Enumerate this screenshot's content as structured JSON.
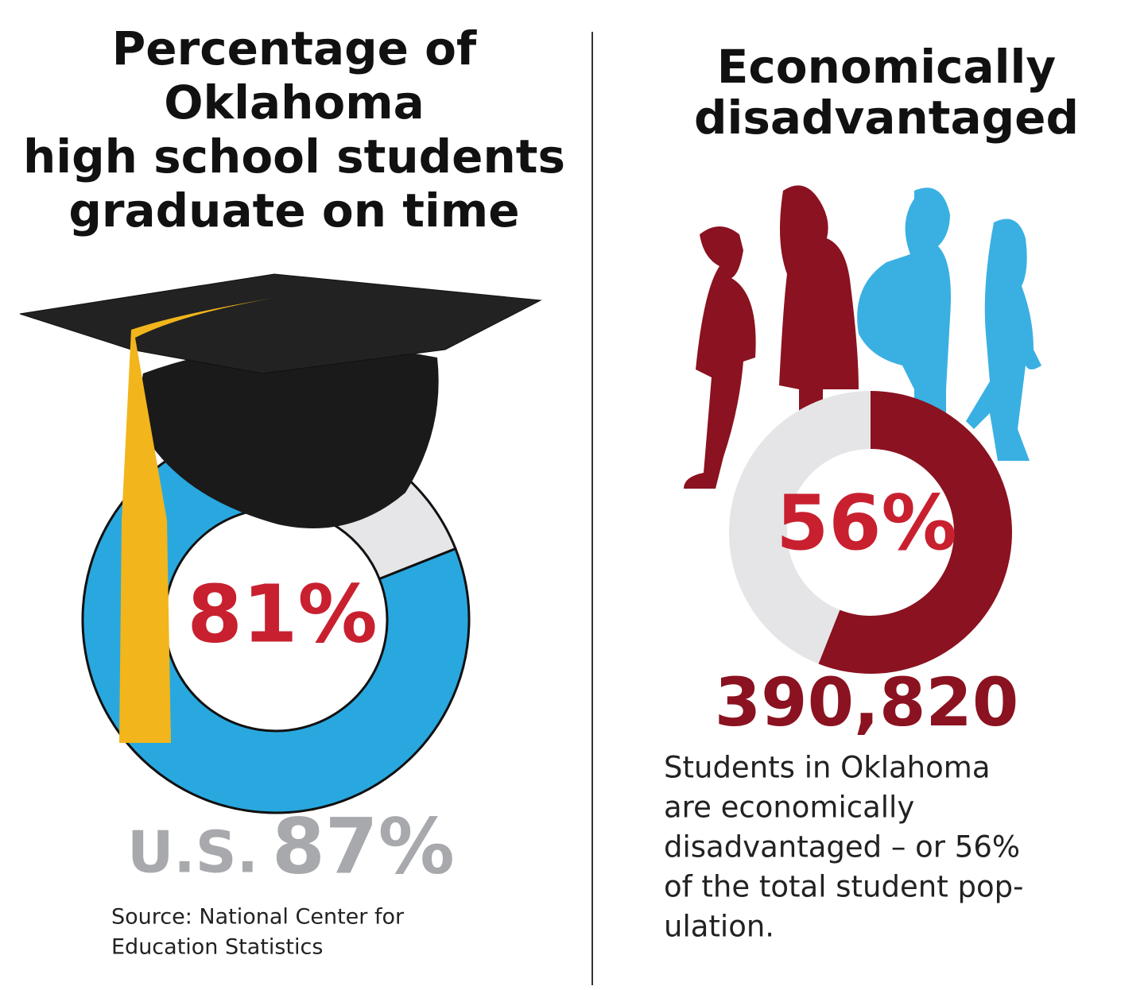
{
  "chart_data": [
    {
      "type": "donut",
      "title": [
        "Percentage of",
        "Oklahoma",
        "high school students",
        "graduate on time"
      ],
      "values": [
        81,
        19
      ],
      "value_labels": [
        "81%",
        null
      ],
      "colors": [
        "#29a8e0",
        "#e6e6e8"
      ],
      "direction": "counterclockwise",
      "comparison": {
        "label": "U.S.",
        "value": 87,
        "value_label": "87%"
      },
      "source": [
        "Source: National Center for",
        "Education Statistics"
      ]
    },
    {
      "type": "donut",
      "title": [
        "Economically",
        "disadvantaged"
      ],
      "values": [
        56,
        44
      ],
      "value_labels": [
        "56%",
        null
      ],
      "colors": [
        "#8b1220",
        "#e5e5e7"
      ],
      "direction": "clockwise",
      "count": 390820,
      "count_label": "390,820",
      "description": [
        "Students in Oklahoma",
        "are economically",
        "disadvantaged – or 56%",
        "of the total student pop-",
        "ulation."
      ]
    }
  ]
}
